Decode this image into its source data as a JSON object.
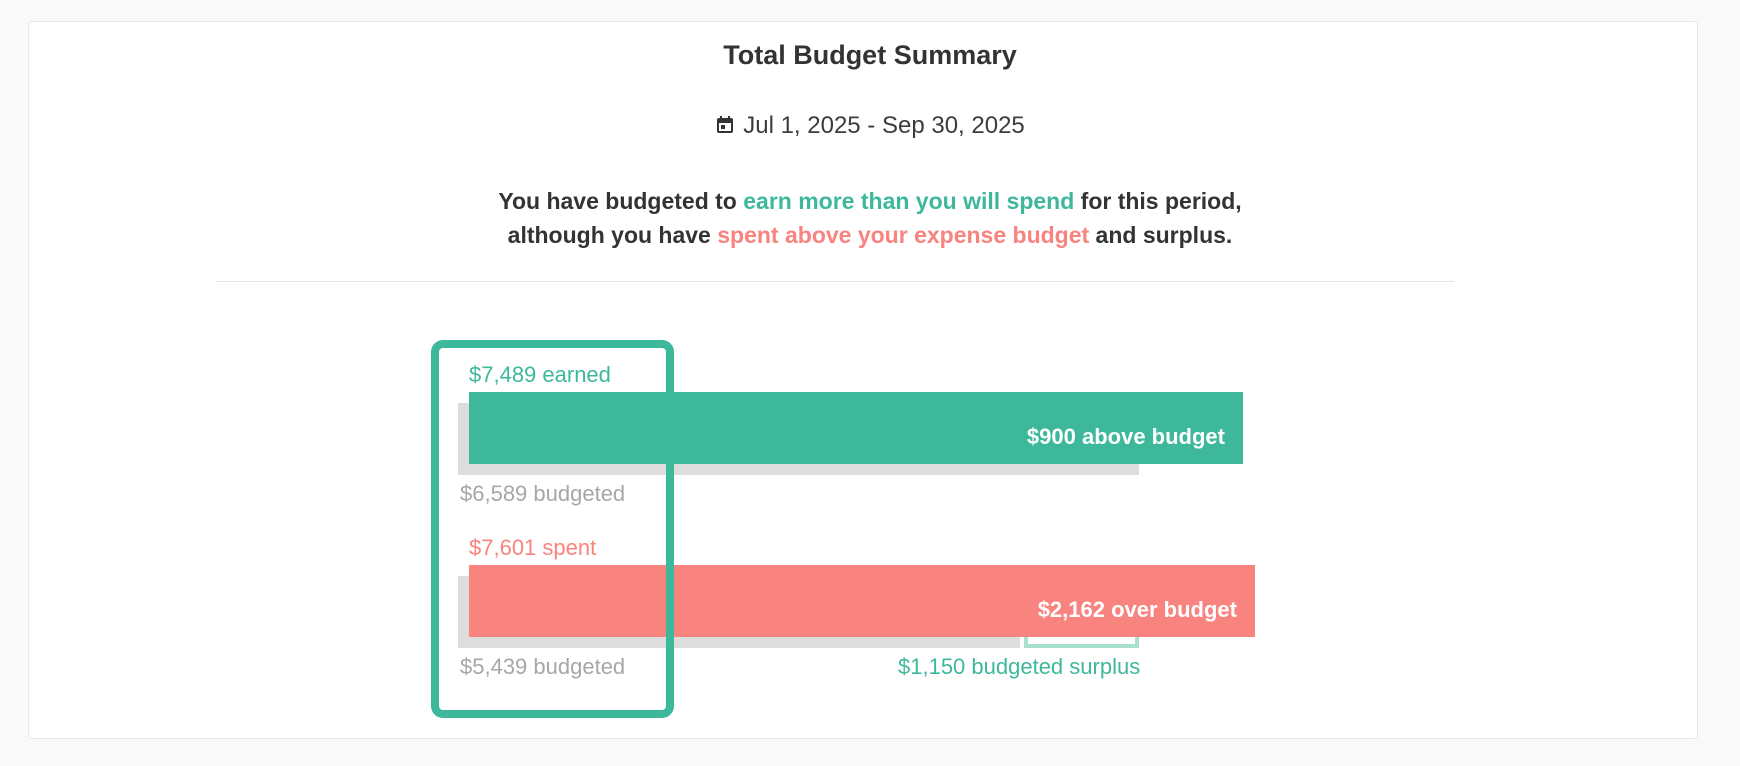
{
  "title": "Total Budget Summary",
  "date_range": "Jul 1, 2025 - Sep 30, 2025",
  "icons": {
    "date": "calendar-icon"
  },
  "summary": {
    "line1_prefix": "You have budgeted to ",
    "line1_highlight": "earn more than you will spend",
    "line1_suffix": " for this period,",
    "line2_prefix": "although you have ",
    "line2_highlight": "spent above your expense budget",
    "line2_suffix": " and surplus."
  },
  "income": {
    "actual_label": "$7,489 earned",
    "budget_label": "$6,589 budgeted",
    "variance_label": "$900 above budget",
    "actual": 7489,
    "budgeted": 6589
  },
  "expense": {
    "actual_label": "$7,601 spent",
    "budget_label": "$5,439 budgeted",
    "variance_label": "$2,162 over budget",
    "surplus_label": "$1,150 budgeted surplus",
    "actual": 7601,
    "budgeted": 5439,
    "surplus": 1150
  },
  "colors": {
    "income": "#3eb89b",
    "expense": "#f8837f",
    "budget_track": "#dddddd",
    "surplus": "#a8dfcd",
    "muted_text": "#a7a7a7"
  }
}
